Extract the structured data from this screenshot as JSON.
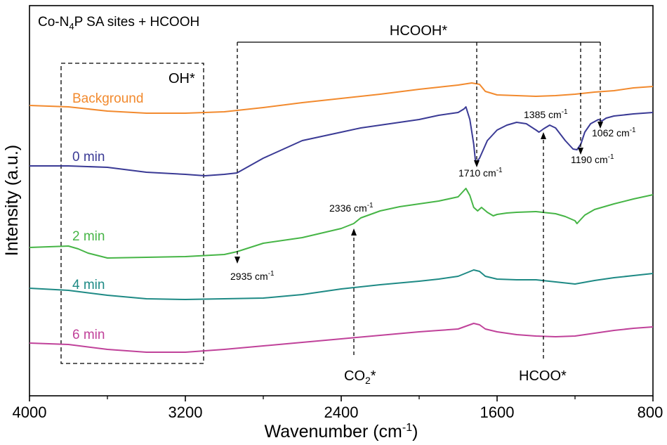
{
  "chart_data": {
    "type": "line",
    "title": "Co-N4P SA sites + HCOOH",
    "title_parts": {
      "a": "Co-N",
      "sub": "4",
      "b": "P SA sites + HCOOH"
    },
    "xlabel_parts": {
      "a": "Wavenumber (cm",
      "sup": "-1",
      "b": ")"
    },
    "ylabel": "Intensity (a.u.)",
    "xlim": [
      4000,
      800
    ],
    "x_ticks": [
      4000,
      3200,
      2400,
      1600,
      800
    ],
    "x_tick_labels": [
      "4000",
      "3200",
      "2400",
      "1600",
      "800"
    ],
    "series": [
      {
        "name": "Background",
        "color": "#f28a2e",
        "x": [
          4000,
          3800,
          3600,
          3400,
          3200,
          3000,
          2800,
          2600,
          2400,
          2200,
          2000,
          1900,
          1800,
          1730,
          1690,
          1660,
          1600,
          1500,
          1400,
          1300,
          1200,
          1100,
          1000,
          900,
          800
        ],
        "y": [
          150,
          152,
          158,
          161,
          161,
          159,
          153,
          146,
          140,
          134,
          127,
          124,
          121,
          118,
          120,
          130,
          135,
          136,
          137,
          136,
          134,
          131,
          129,
          125,
          123
        ]
      },
      {
        "name": "0 min",
        "color": "#3a3a95",
        "x": [
          4000,
          3800,
          3600,
          3400,
          3200,
          3100,
          3000,
          2935,
          2800,
          2600,
          2400,
          2300,
          2200,
          2100,
          2000,
          1900,
          1800,
          1770,
          1760,
          1740,
          1720,
          1710,
          1690,
          1650,
          1600,
          1550,
          1500,
          1450,
          1400,
          1385,
          1360,
          1330,
          1300,
          1250,
          1210,
          1190,
          1170,
          1150,
          1120,
          1080,
          1062,
          1040,
          1000,
          900,
          800
        ],
        "y": [
          236,
          236,
          238,
          245,
          248,
          250,
          248,
          246,
          225,
          200,
          188,
          182,
          178,
          174,
          170,
          164,
          160,
          155,
          152,
          170,
          205,
          232,
          225,
          200,
          185,
          178,
          174,
          176,
          185,
          188,
          183,
          178,
          182,
          200,
          212,
          213,
          205,
          188,
          176,
          170,
          172,
          168,
          165,
          162,
          160
        ]
      },
      {
        "name": "2 min",
        "color": "#46b546",
        "x": [
          4000,
          3900,
          3800,
          3750,
          3700,
          3600,
          3400,
          3200,
          3000,
          2935,
          2800,
          2600,
          2400,
          2336,
          2300,
          2200,
          2100,
          2000,
          1900,
          1800,
          1760,
          1740,
          1720,
          1700,
          1680,
          1650,
          1620,
          1600,
          1550,
          1500,
          1400,
          1300,
          1250,
          1200,
          1190,
          1170,
          1150,
          1100,
          1000,
          900,
          800
        ],
        "y": [
          352,
          351,
          350,
          354,
          360,
          367,
          366,
          365,
          362,
          358,
          346,
          338,
          325,
          318,
          310,
          300,
          294,
          290,
          286,
          280,
          268,
          278,
          295,
          300,
          295,
          302,
          307,
          305,
          303,
          302,
          301,
          304,
          308,
          314,
          318,
          312,
          306,
          298,
          290,
          283,
          277
        ]
      },
      {
        "name": "4 min",
        "color": "#1e8a85",
        "x": [
          4000,
          3800,
          3600,
          3400,
          3200,
          3000,
          2800,
          2600,
          2400,
          2200,
          2000,
          1900,
          1800,
          1720,
          1690,
          1660,
          1600,
          1500,
          1400,
          1300,
          1200,
          1100,
          1000,
          900,
          800
        ],
        "y": [
          410,
          413,
          420,
          425,
          426,
          425,
          424,
          419,
          411,
          405,
          400,
          397,
          393,
          384,
          386,
          393,
          397,
          398,
          398,
          401,
          404,
          399,
          395,
          392,
          389
        ]
      },
      {
        "name": "6 min",
        "color": "#c0429a",
        "x": [
          4000,
          3800,
          3600,
          3400,
          3200,
          3000,
          2800,
          2600,
          2400,
          2200,
          2000,
          1900,
          1800,
          1720,
          1690,
          1660,
          1600,
          1500,
          1400,
          1300,
          1200,
          1100,
          1000,
          900,
          800
        ],
        "y": [
          488,
          490,
          497,
          501,
          501,
          497,
          492,
          487,
          482,
          477,
          472,
          470,
          468,
          460,
          462,
          468,
          472,
          476,
          478,
          479,
          478,
          474,
          470,
          467,
          465
        ]
      }
    ],
    "labels": {
      "oh_box": "OH*",
      "hcooh": "HCOOH*",
      "co2_base": "CO",
      "co2_sub": "2",
      "co2_star": "*",
      "hcoo": "HCOO*",
      "p2935": {
        "num": "2935 cm",
        "sup": "-1"
      },
      "p2336": {
        "num": "2336 cm",
        "sup": "-1"
      },
      "p1710": {
        "num": "1710 cm",
        "sup": "-1"
      },
      "p1385": {
        "num": "1385 cm",
        "sup": "-1"
      },
      "p1190": {
        "num": "1190 cm",
        "sup": "-1"
      },
      "p1062": {
        "num": "1062 cm",
        "sup": "-1"
      }
    }
  }
}
